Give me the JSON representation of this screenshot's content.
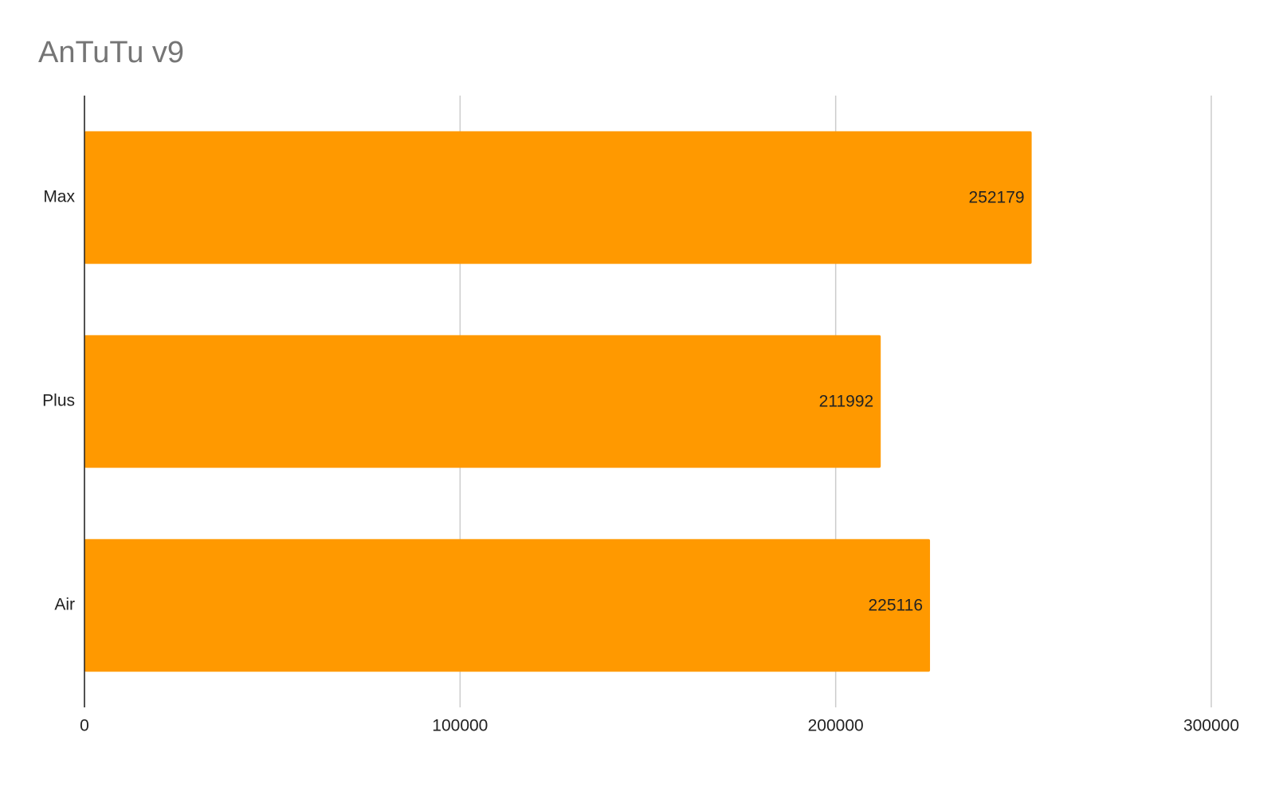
{
  "chart_data": {
    "type": "hbar",
    "title": "AnTuTu v9",
    "categories": [
      "Max",
      "Plus",
      "Air"
    ],
    "values": [
      252179,
      211992,
      225116
    ],
    "color": "#ff9900",
    "xlim": [
      0,
      300000
    ],
    "xticks": [
      0,
      100000,
      200000,
      300000
    ],
    "grid": true
  }
}
